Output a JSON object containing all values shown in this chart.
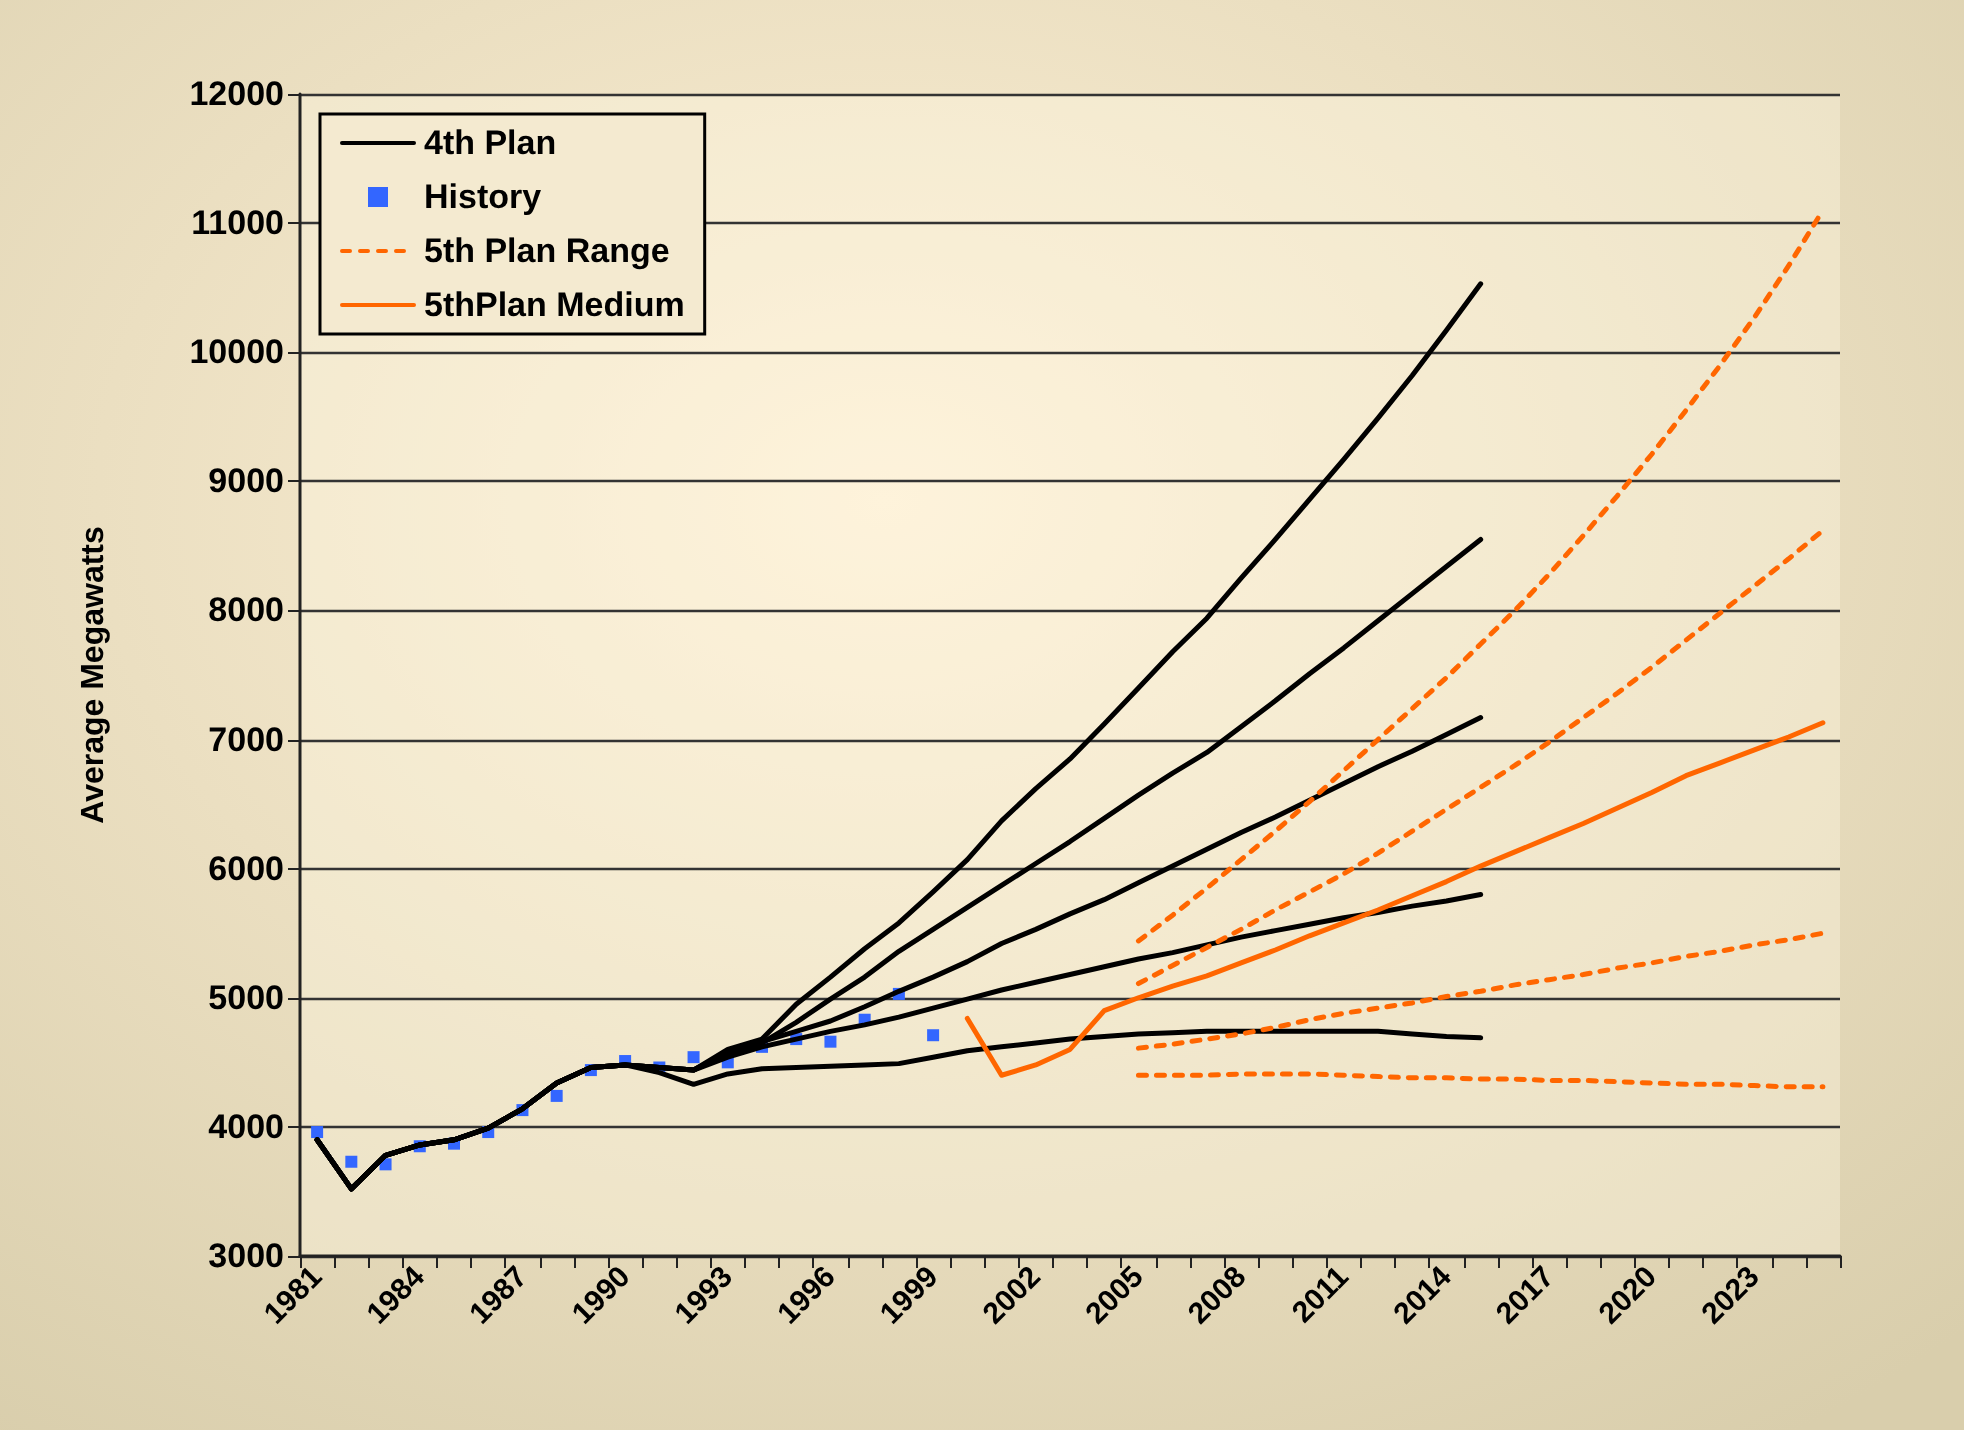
{
  "chart_data": {
    "type": "line",
    "ylabel": "Average Megawatts",
    "categories": [
      "1981",
      null,
      null,
      "1984",
      null,
      null,
      "1987",
      null,
      null,
      "1990",
      null,
      null,
      "1993",
      null,
      null,
      "1996",
      null,
      null,
      "1999",
      null,
      null,
      "2002",
      null,
      null,
      "2005",
      null,
      null,
      "2008",
      null,
      null,
      "2011",
      null,
      null,
      "2014",
      null,
      null,
      "2017",
      null,
      null,
      "2020",
      null,
      null,
      "2023",
      null,
      null
    ],
    "ylim": [
      3000,
      12000
    ],
    "yticks": [
      3000,
      4000,
      5000,
      6000,
      7000,
      8000,
      9000,
      10000,
      11000,
      12000
    ],
    "grid": "y",
    "legend": "top left",
    "series": [
      {
        "name": "4th Plan",
        "color": "#000000",
        "line_style": "solid",
        "marker": "none",
        "values": [
          3900,
          3520,
          3780,
          3860,
          3900,
          3990,
          4140,
          4340,
          4460,
          4480,
          4460,
          4440,
          4600,
          4680,
          4950,
          5160,
          5380,
          5580,
          5820,
          6070,
          6370,
          6620,
          6850,
          7120,
          7400,
          7680,
          7940,
          8250,
          8550,
          8860,
          9170,
          9490,
          9820,
          10170,
          10530,
          null,
          null,
          null,
          null,
          null,
          null,
          null,
          null,
          null,
          null
        ]
      },
      {
        "color": "#000000",
        "line_style": "solid",
        "marker": "none",
        "values": [
          3900,
          3520,
          3780,
          3860,
          3900,
          3990,
          4140,
          4340,
          4460,
          4480,
          4460,
          4440,
          4580,
          4650,
          4810,
          4990,
          5160,
          5360,
          5530,
          5700,
          5870,
          6040,
          6210,
          6390,
          6570,
          6740,
          6900,
          7100,
          7300,
          7510,
          7710,
          7920,
          8130,
          8340,
          8550,
          null,
          null,
          null,
          null,
          null,
          null,
          null,
          null,
          null,
          null
        ]
      },
      {
        "color": "#000000",
        "line_style": "solid",
        "marker": "none",
        "values": [
          3900,
          3520,
          3780,
          3860,
          3900,
          3990,
          4140,
          4340,
          4460,
          4480,
          4460,
          4440,
          4560,
          4660,
          4740,
          4820,
          4930,
          5050,
          5160,
          5280,
          5420,
          5530,
          5650,
          5760,
          5890,
          6020,
          6150,
          6280,
          6400,
          6530,
          6660,
          6790,
          6910,
          7040,
          7170,
          null,
          null,
          null,
          null,
          null,
          null,
          null,
          null,
          null,
          null
        ]
      },
      {
        "color": "#000000",
        "line_style": "solid",
        "marker": "none",
        "values": [
          3900,
          3520,
          3780,
          3860,
          3900,
          3990,
          4140,
          4340,
          4460,
          4480,
          4460,
          4440,
          4540,
          4620,
          4680,
          4740,
          4790,
          4850,
          4920,
          4990,
          5060,
          5120,
          5180,
          5240,
          5300,
          5350,
          5410,
          5470,
          5520,
          5570,
          5620,
          5660,
          5710,
          5750,
          5800,
          null,
          null,
          null,
          null,
          null,
          null,
          null,
          null,
          null,
          null
        ]
      },
      {
        "color": "#000000",
        "line_style": "solid",
        "marker": "none",
        "values": [
          3900,
          3520,
          3780,
          3860,
          3900,
          3990,
          4140,
          4340,
          4460,
          4480,
          4420,
          4330,
          4410,
          4450,
          4460,
          4470,
          4480,
          4490,
          4540,
          4590,
          4620,
          4650,
          4680,
          4700,
          4720,
          4730,
          4740,
          4740,
          4740,
          4740,
          4740,
          4740,
          4720,
          4700,
          4690,
          null,
          null,
          null,
          null,
          null,
          null,
          null,
          null,
          null,
          null
        ]
      },
      {
        "name": "History",
        "type": "scatter",
        "color": "#3366ff",
        "marker": "square",
        "values": [
          3960,
          3730,
          3710,
          3850,
          3870,
          3960,
          4130,
          4240,
          4440,
          4510,
          4460,
          4540,
          4500,
          4620,
          4680,
          4660,
          4830,
          5030,
          4710,
          null,
          null,
          null,
          null,
          null,
          null,
          null,
          null,
          null,
          null,
          null,
          null,
          null,
          null,
          null,
          null,
          null,
          null,
          null,
          null,
          null,
          null,
          null,
          null,
          null,
          null
        ]
      },
      {
        "name": "5th Plan Range",
        "color": "#ff6600",
        "line_style": "dashed",
        "marker": "none",
        "values": [
          null,
          null,
          null,
          null,
          null,
          null,
          null,
          null,
          null,
          null,
          null,
          null,
          null,
          null,
          null,
          null,
          null,
          null,
          null,
          null,
          null,
          null,
          null,
          null,
          5440,
          5640,
          5850,
          6070,
          6290,
          6520,
          6760,
          7000,
          7240,
          7480,
          7740,
          8000,
          8280,
          8580,
          8890,
          9210,
          9550,
          9900,
          10270,
          10670,
          11100
        ]
      },
      {
        "color": "#ff6600",
        "line_style": "dashed",
        "marker": "none",
        "values": [
          null,
          null,
          null,
          null,
          null,
          null,
          null,
          null,
          null,
          null,
          null,
          null,
          null,
          null,
          null,
          null,
          null,
          null,
          null,
          null,
          null,
          null,
          null,
          null,
          5110,
          5250,
          5390,
          5530,
          5680,
          5820,
          5960,
          6120,
          6290,
          6460,
          6630,
          6800,
          6980,
          7170,
          7360,
          7560,
          7770,
          7980,
          8190,
          8400,
          8620
        ]
      },
      {
        "color": "#ff6600",
        "line_style": "dashed",
        "marker": "none",
        "values": [
          null,
          null,
          null,
          null,
          null,
          null,
          null,
          null,
          null,
          null,
          null,
          null,
          null,
          null,
          null,
          null,
          null,
          null,
          null,
          null,
          null,
          null,
          null,
          null,
          4610,
          4640,
          4680,
          4720,
          4770,
          4830,
          4880,
          4920,
          4960,
          5010,
          5050,
          5100,
          5140,
          5180,
          5230,
          5270,
          5320,
          5360,
          5410,
          5450,
          5500
        ]
      },
      {
        "color": "#ff6600",
        "line_style": "dashed",
        "marker": "none",
        "values": [
          null,
          null,
          null,
          null,
          null,
          null,
          null,
          null,
          null,
          null,
          null,
          null,
          null,
          null,
          null,
          null,
          null,
          null,
          null,
          null,
          null,
          null,
          null,
          null,
          4400,
          4400,
          4400,
          4410,
          4410,
          4410,
          4400,
          4390,
          4380,
          4380,
          4370,
          4370,
          4360,
          4360,
          4350,
          4340,
          4330,
          4330,
          4320,
          4310,
          4310
        ]
      },
      {
        "name": "5thPlan Medium",
        "color": "#ff6600",
        "line_style": "solid",
        "marker": "none",
        "values": [
          null,
          null,
          null,
          null,
          null,
          null,
          null,
          null,
          null,
          null,
          null,
          null,
          null,
          null,
          null,
          null,
          null,
          null,
          null,
          4840,
          4400,
          4480,
          4600,
          4900,
          5000,
          5090,
          5170,
          5270,
          5370,
          5480,
          5580,
          5680,
          5790,
          5900,
          6020,
          6130,
          6240,
          6350,
          6470,
          6590,
          6720,
          6820,
          6920,
          7020,
          7130
        ]
      }
    ]
  }
}
